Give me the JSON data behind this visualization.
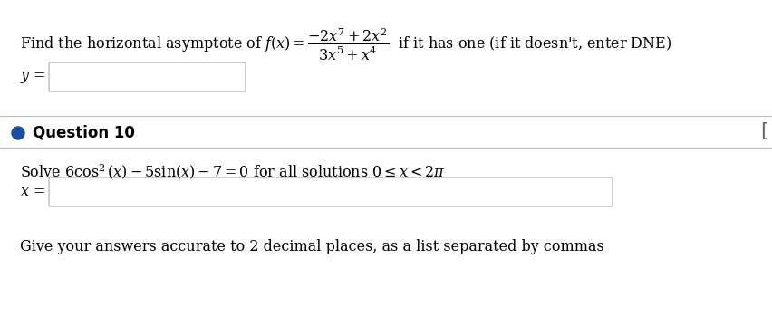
{
  "bg_color": "#ffffff",
  "text_color": "#000000",
  "bullet_color": "#1a4fa0",
  "divider_color": "#bbbbbb",
  "input_border_color": "#aaaaaa",
  "input_fill_color": "#ffffff",
  "corner_bracket_color": "#666666",
  "q9_prefix": "Find the horizontal asymptote of $f(x) = $",
  "q9_suffix": " if it has one (if it doesn't, enter DNE)",
  "q9_fraction": "$\\dfrac{-2x^7 + 2x^2}{3x^5 + x^4}$",
  "y_label": "$y$ =",
  "x_label": "$x$ =",
  "q10_label": "Question 10",
  "solve_text": "Solve $6\\cos^2(x) - 5\\sin(x) - 7 = 0$ for all solutions $0 \\leq x < 2\\pi$",
  "footer_text": "Give your answers accurate to 2 decimal places, as a list separated by commas",
  "figwidth": 8.52,
  "figheight": 3.6,
  "dpi": 100
}
